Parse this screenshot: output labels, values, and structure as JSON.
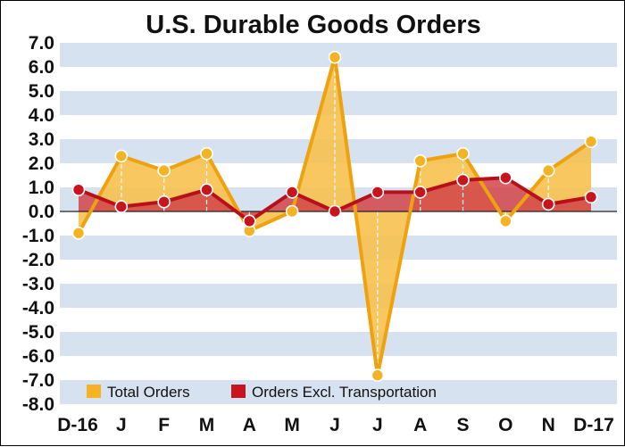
{
  "chart_data": {
    "type": "line",
    "title": "U.S. Durable Goods Orders",
    "categories": [
      "D-16",
      "J",
      "F",
      "M",
      "A",
      "M",
      "J",
      "J",
      "A",
      "S",
      "O",
      "N",
      "D-17"
    ],
    "series": [
      {
        "name": "Total Orders",
        "color": "#f2ab18",
        "values": [
          -0.9,
          2.3,
          1.7,
          2.4,
          -0.8,
          0.0,
          6.4,
          -6.8,
          2.1,
          2.4,
          -0.4,
          1.7,
          2.9
        ]
      },
      {
        "name": "Orders Excl. Transportation",
        "color": "#c8141e",
        "values": [
          0.9,
          0.2,
          0.4,
          0.9,
          -0.4,
          0.8,
          0.0,
          0.8,
          0.8,
          1.3,
          1.4,
          0.3,
          0.6
        ]
      }
    ],
    "ylim": [
      -8.0,
      7.0
    ],
    "yticks": [
      "7.0",
      "6.0",
      "5.0",
      "4.0",
      "3.0",
      "2.0",
      "1.0",
      "0.0",
      "-1.0",
      "-2.0",
      "-3.0",
      "-4.0",
      "-5.0",
      "-6.0",
      "-7.0",
      "-8.0"
    ],
    "xlabel": "",
    "ylabel": "",
    "grid": "horizontal bands",
    "legend_position": "bottom-left"
  }
}
